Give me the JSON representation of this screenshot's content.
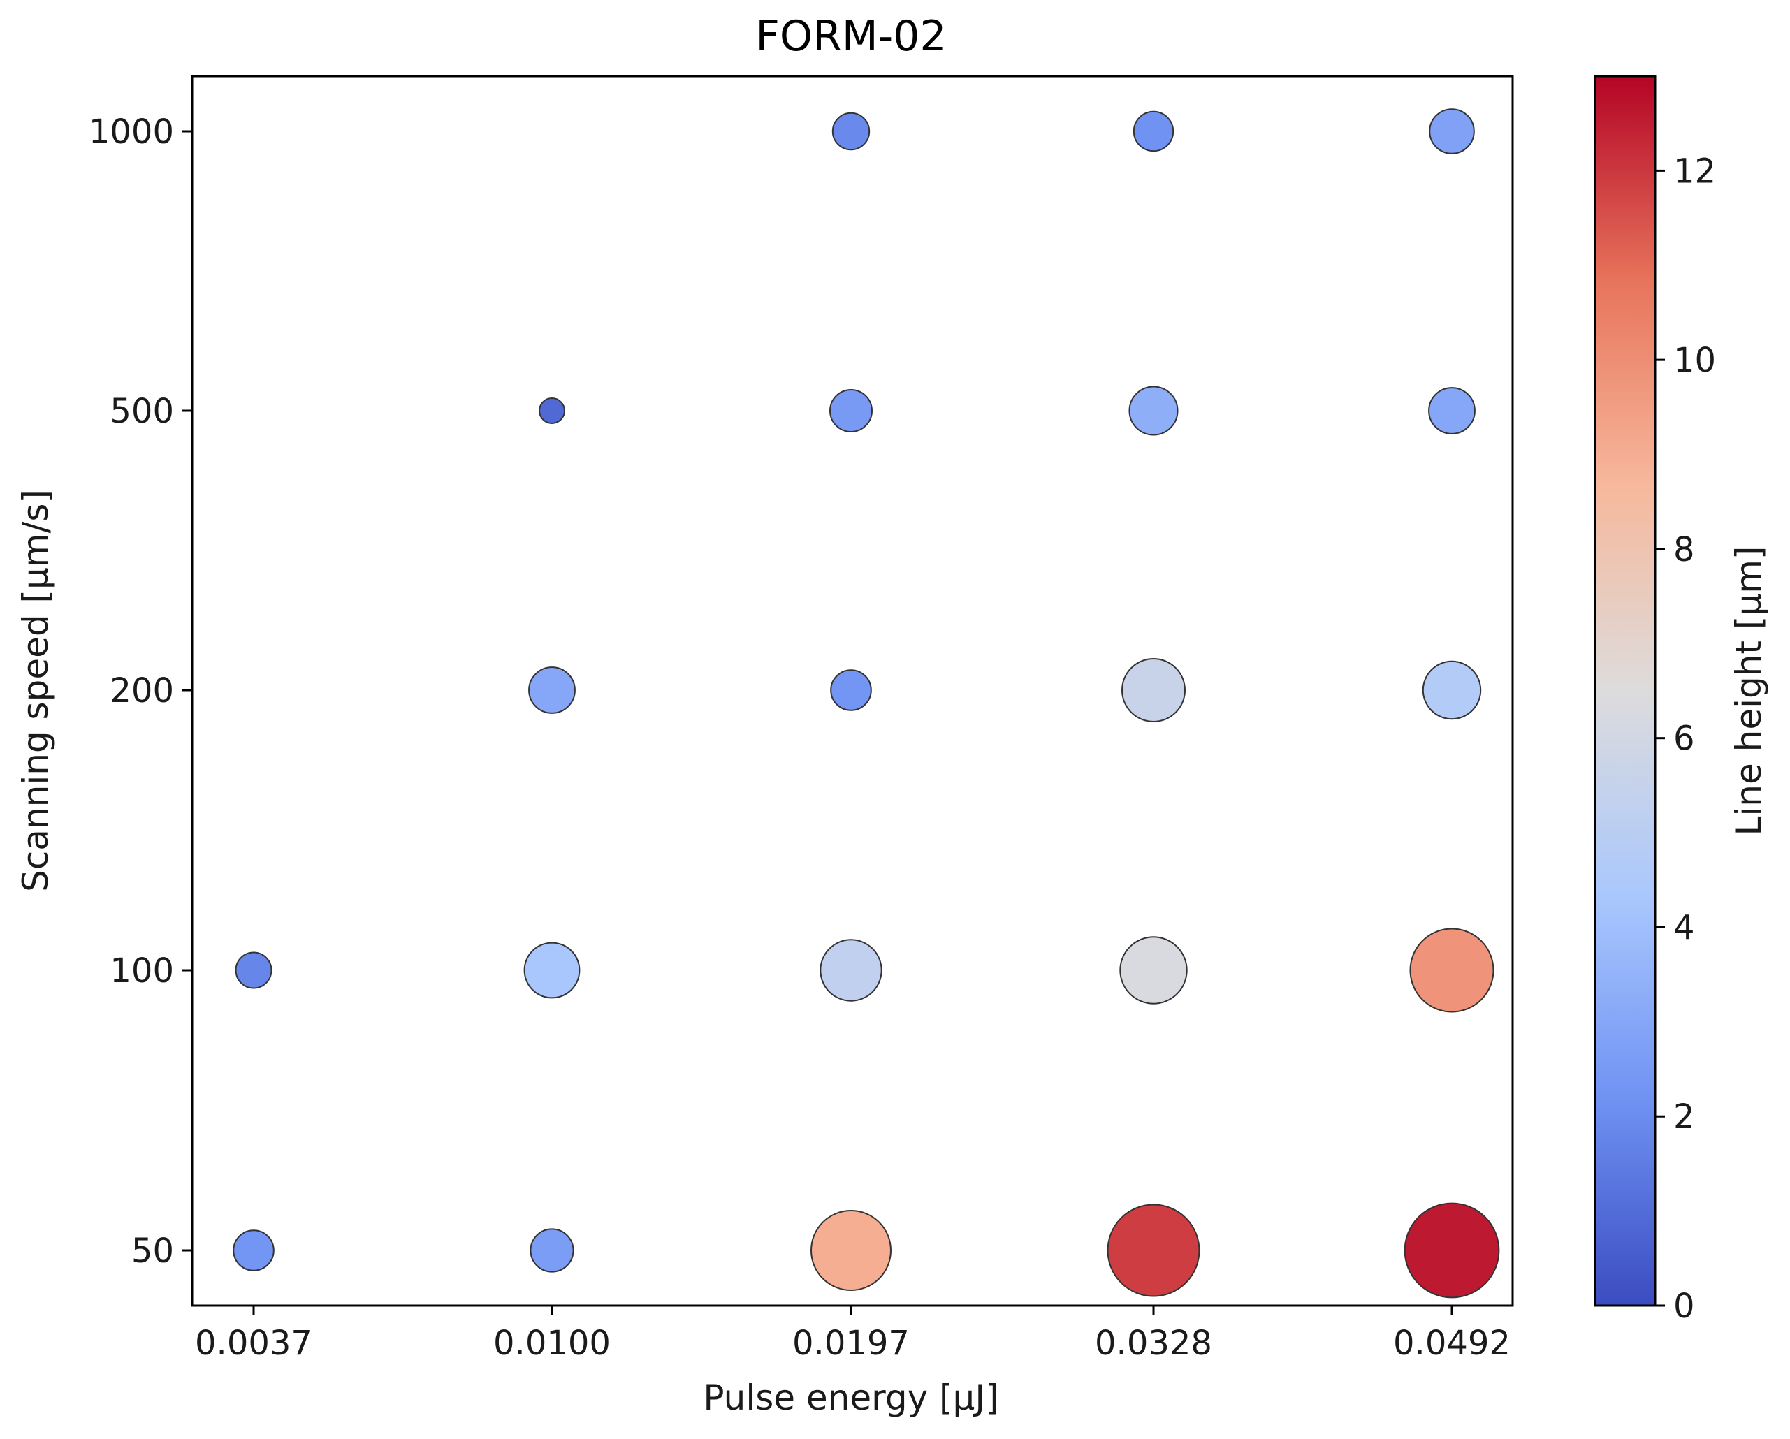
{
  "chart_data": {
    "type": "scatter",
    "title": "FORM-02",
    "xlabel": "Pulse energy [μJ]",
    "ylabel": "Scanning speed [μm/s]",
    "x_categories": [
      "0.0037",
      "0.0100",
      "0.0197",
      "0.0328",
      "0.0492"
    ],
    "y_categories": [
      "50",
      "100",
      "200",
      "500",
      "1000"
    ],
    "colorbar": {
      "label": "Line height  [μm]",
      "range": [
        0,
        13
      ],
      "ticks": [
        "0",
        "2",
        "4",
        "6",
        "8",
        "10",
        "12"
      ],
      "colormap": "coolwarm",
      "colors": [
        "#3b4cc0",
        "#6f92f3",
        "#aac7fd",
        "#dddcdc",
        "#f7b89c",
        "#e7745b",
        "#b40426"
      ]
    },
    "size_encodes": "Line height",
    "grid": false,
    "points": [
      {
        "x": "0.0037",
        "y": "50",
        "value": 2.3
      },
      {
        "x": "0.0037",
        "y": "100",
        "value": 1.8
      },
      {
        "x": "0.0100",
        "y": "50",
        "value": 2.6
      },
      {
        "x": "0.0100",
        "y": "100",
        "value": 4.3
      },
      {
        "x": "0.0100",
        "y": "200",
        "value": 3.0
      },
      {
        "x": "0.0100",
        "y": "500",
        "value": 0.9
      },
      {
        "x": "0.0197",
        "y": "50",
        "value": 9.0
      },
      {
        "x": "0.0197",
        "y": "100",
        "value": 5.3
      },
      {
        "x": "0.0197",
        "y": "200",
        "value": 2.3
      },
      {
        "x": "0.0197",
        "y": "500",
        "value": 2.5
      },
      {
        "x": "0.0197",
        "y": "1000",
        "value": 1.9
      },
      {
        "x": "0.0328",
        "y": "50",
        "value": 11.9
      },
      {
        "x": "0.0328",
        "y": "100",
        "value": 6.3
      },
      {
        "x": "0.0328",
        "y": "200",
        "value": 5.6
      },
      {
        "x": "0.0328",
        "y": "500",
        "value": 3.3
      },
      {
        "x": "0.0328",
        "y": "1000",
        "value": 2.2
      },
      {
        "x": "0.0492",
        "y": "50",
        "value": 12.6
      },
      {
        "x": "0.0492",
        "y": "100",
        "value": 9.8
      },
      {
        "x": "0.0492",
        "y": "200",
        "value": 4.7
      },
      {
        "x": "0.0492",
        "y": "500",
        "value": 3.0
      },
      {
        "x": "0.0492",
        "y": "1000",
        "value": 2.8
      }
    ]
  }
}
